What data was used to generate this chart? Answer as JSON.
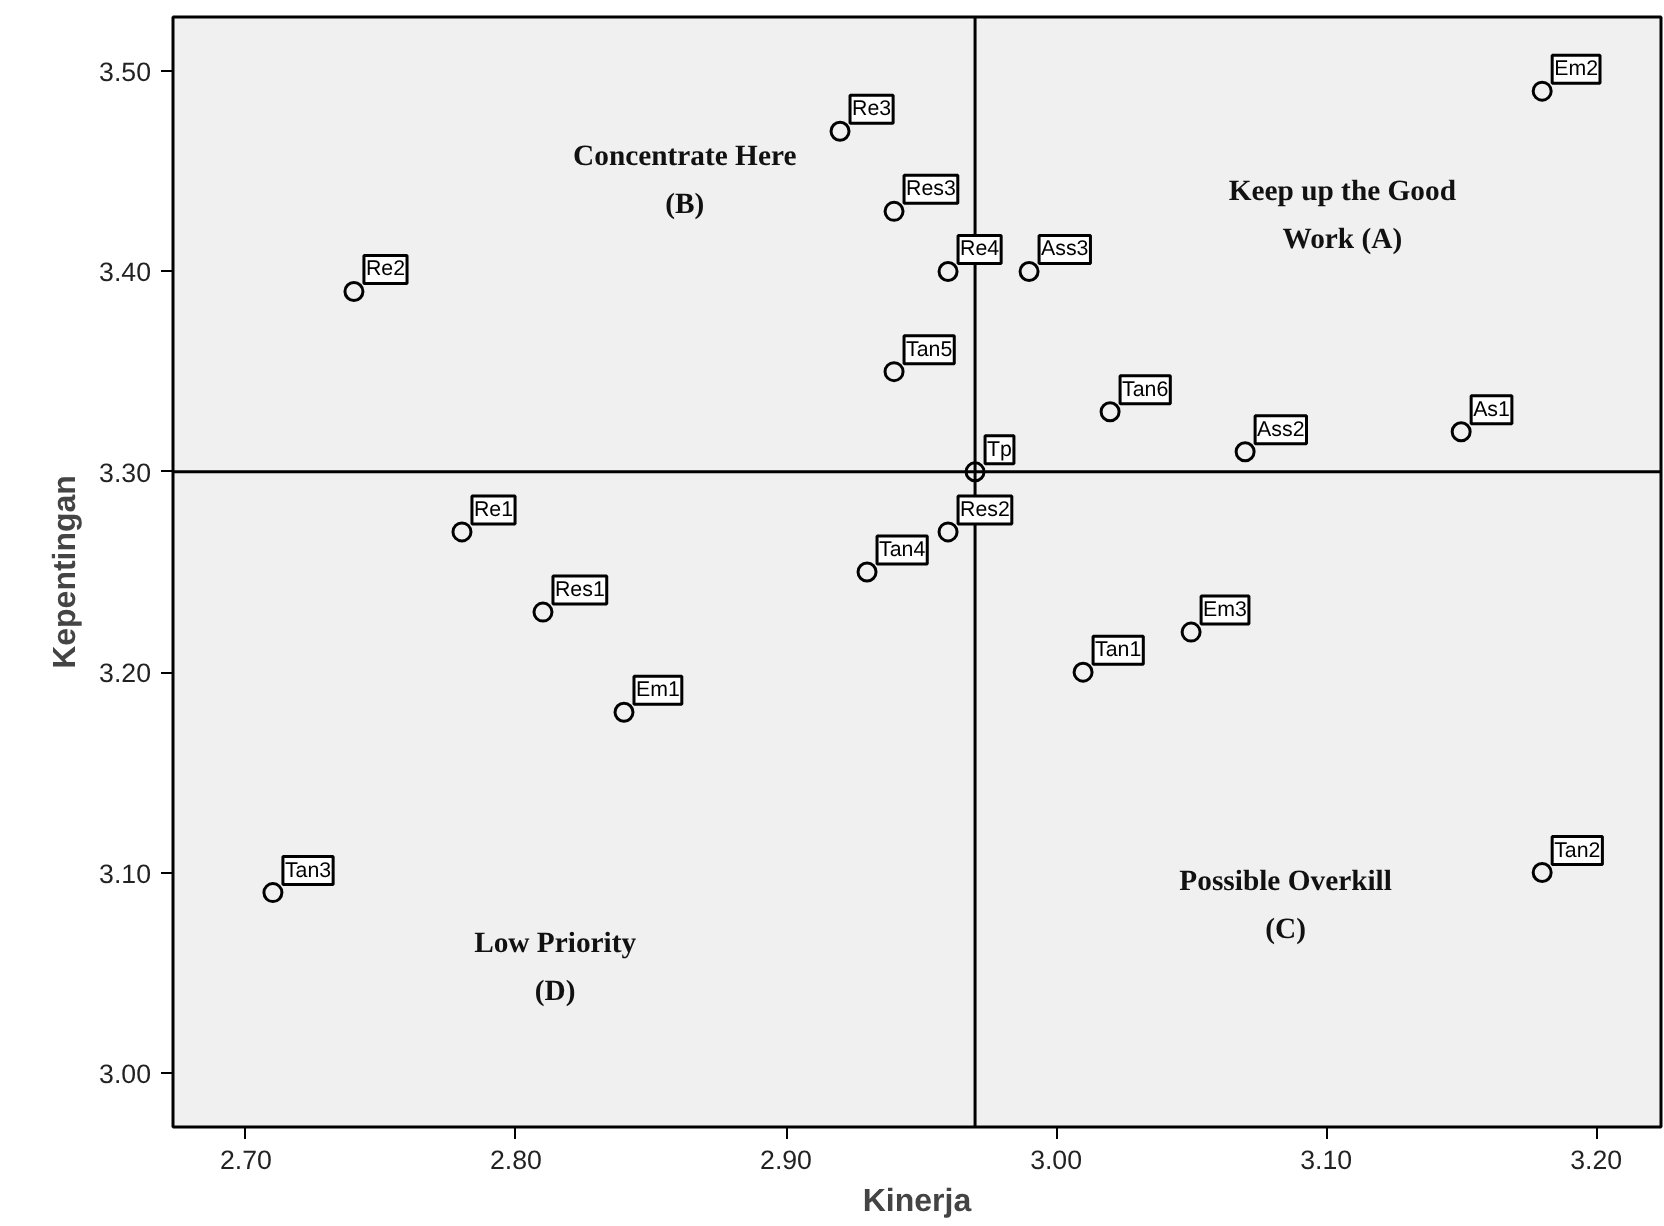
{
  "chart_data": {
    "type": "scatter",
    "xlabel": "Kinerja",
    "ylabel": "Kepentingan",
    "x": [
      2.74,
      2.92,
      2.94,
      2.96,
      2.99,
      2.94,
      3.02,
      3.07,
      3.15,
      3.18,
      2.97,
      2.96,
      2.93,
      2.78,
      2.81,
      2.84,
      3.01,
      3.05,
      2.71,
      3.18
    ],
    "values": [
      3.39,
      3.47,
      3.43,
      3.4,
      3.4,
      3.35,
      3.33,
      3.31,
      3.32,
      3.49,
      3.3,
      3.27,
      3.25,
      3.27,
      3.23,
      3.18,
      3.2,
      3.22,
      3.09,
      3.1
    ],
    "color": "#000000",
    "marker": "circle",
    "grid": false,
    "xlim": [
      2.673,
      3.224
    ],
    "ylim": [
      2.973,
      3.527
    ],
    "xticks": [
      {
        "value": 2.7,
        "label": "2.70"
      },
      {
        "value": 2.8,
        "label": "2.80"
      },
      {
        "value": 2.9,
        "label": "2.90"
      },
      {
        "value": 3.0,
        "label": "3.00"
      },
      {
        "value": 3.1,
        "label": "3.10"
      },
      {
        "value": 3.2,
        "label": "3.20"
      }
    ],
    "yticks": [
      {
        "value": 3.0,
        "label": "3.00"
      },
      {
        "value": 3.1,
        "label": "3.10"
      },
      {
        "value": 3.2,
        "label": "3.20"
      },
      {
        "value": 3.3,
        "label": "3.30"
      },
      {
        "value": 3.4,
        "label": "3.40"
      },
      {
        "value": 3.5,
        "label": "3.50"
      }
    ],
    "ref_lines": [
      {
        "axis": "x",
        "value": 2.97,
        "color": "#000000"
      },
      {
        "axis": "y",
        "value": 3.3,
        "color": "#000000"
      }
    ],
    "annotations": [
      "Concentrate Here\n(B)",
      "Keep up the Good\nWork (A)",
      "Low Priority\n(D)",
      "Possible Overkill\n(C)",
      {
        "text": "Re2",
        "x": 2.74,
        "y": 3.39
      },
      {
        "text": "Re3",
        "x": 2.92,
        "y": 3.47
      },
      {
        "text": "Res3",
        "x": 2.94,
        "y": 3.43
      },
      {
        "text": "Re4",
        "x": 2.96,
        "y": 3.4
      },
      {
        "text": "Ass3",
        "x": 2.99,
        "y": 3.4
      },
      {
        "text": "Tan5",
        "x": 2.94,
        "y": 3.35
      },
      {
        "text": "Tan6",
        "x": 3.02,
        "y": 3.33
      },
      {
        "text": "Ass2",
        "x": 3.07,
        "y": 3.31
      },
      {
        "text": "As1",
        "x": 3.15,
        "y": 3.32
      },
      {
        "text": "Em2",
        "x": 3.18,
        "y": 3.49
      },
      {
        "text": "Tp",
        "x": 2.97,
        "y": 3.3
      },
      {
        "text": "Res2",
        "x": 2.96,
        "y": 3.27
      },
      {
        "text": "Tan4",
        "x": 2.93,
        "y": 3.25
      },
      {
        "text": "Re1",
        "x": 2.78,
        "y": 3.27
      },
      {
        "text": "Res1",
        "x": 2.81,
        "y": 3.23
      },
      {
        "text": "Em1",
        "x": 2.84,
        "y": 3.18
      },
      {
        "text": "Tan1",
        "x": 3.01,
        "y": 3.2
      },
      {
        "text": "Em3",
        "x": 3.05,
        "y": 3.22
      },
      {
        "text": "Tan3",
        "x": 2.71,
        "y": 3.09
      },
      {
        "text": "Tan2",
        "x": 3.18,
        "y": 3.1
      }
    ]
  }
}
